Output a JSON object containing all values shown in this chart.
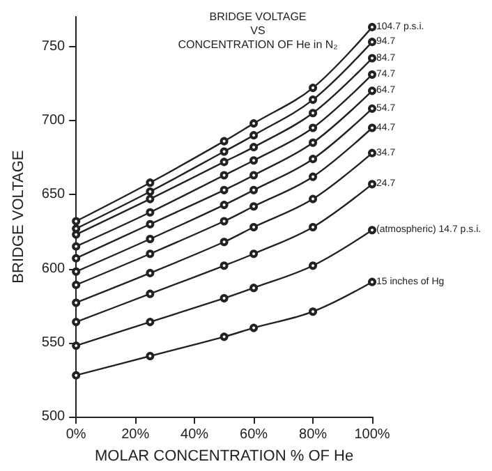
{
  "chart_data": {
    "type": "line",
    "title": "BRIDGE VOLTAGE\nVS\nCONCENTRATION OF He in N₂",
    "xlabel": "MOLAR CONCENTRATION % OF He",
    "ylabel": "BRIDGE VOLTAGE",
    "x": [
      0,
      25,
      50,
      60,
      80,
      100
    ],
    "series": [
      {
        "name": "104.7 p.s.i.",
        "color": "#222222",
        "values": [
          632,
          658,
          686,
          698,
          722,
          763
        ]
      },
      {
        "name": "94.7",
        "color": "#222222",
        "values": [
          627,
          652,
          679,
          690,
          714,
          753
        ]
      },
      {
        "name": "84.7",
        "color": "#222222",
        "values": [
          623,
          647,
          672,
          682,
          705,
          742
        ]
      },
      {
        "name": "74.7",
        "color": "#222222",
        "values": [
          615,
          638,
          663,
          673,
          695,
          731
        ]
      },
      {
        "name": "64.7",
        "color": "#222222",
        "values": [
          607,
          630,
          653,
          663,
          685,
          720
        ]
      },
      {
        "name": "54.7",
        "color": "#222222",
        "values": [
          598,
          620,
          643,
          653,
          674,
          708
        ]
      },
      {
        "name": "44.7",
        "color": "#222222",
        "values": [
          589,
          610,
          632,
          642,
          662,
          695
        ]
      },
      {
        "name": "34.7",
        "color": "#222222",
        "values": [
          577,
          597,
          618,
          628,
          647,
          678
        ]
      },
      {
        "name": "24.7",
        "color": "#222222",
        "values": [
          564,
          583,
          602,
          610,
          628,
          657
        ]
      },
      {
        "name": "(atmospheric) 14.7 p.s.i.",
        "color": "#222222",
        "values": [
          548,
          564,
          580,
          587,
          602,
          626
        ]
      },
      {
        "name": "15 inches of Hg",
        "color": "#222222",
        "values": [
          528,
          541,
          554,
          560,
          571,
          591
        ]
      }
    ],
    "xlim": [
      0,
      100
    ],
    "ylim": [
      500,
      770
    ],
    "xticks": [
      {
        "value": 0,
        "label": "0%"
      },
      {
        "value": 20,
        "label": "20%"
      },
      {
        "value": 40,
        "label": "40%"
      },
      {
        "value": 60,
        "label": "60%"
      },
      {
        "value": 80,
        "label": "80%"
      },
      {
        "value": 100,
        "label": "100%"
      }
    ],
    "yticks": [
      500,
      550,
      600,
      650,
      700,
      750
    ],
    "grid": false,
    "legend": false,
    "marker": "circle",
    "line_style": "solid"
  }
}
